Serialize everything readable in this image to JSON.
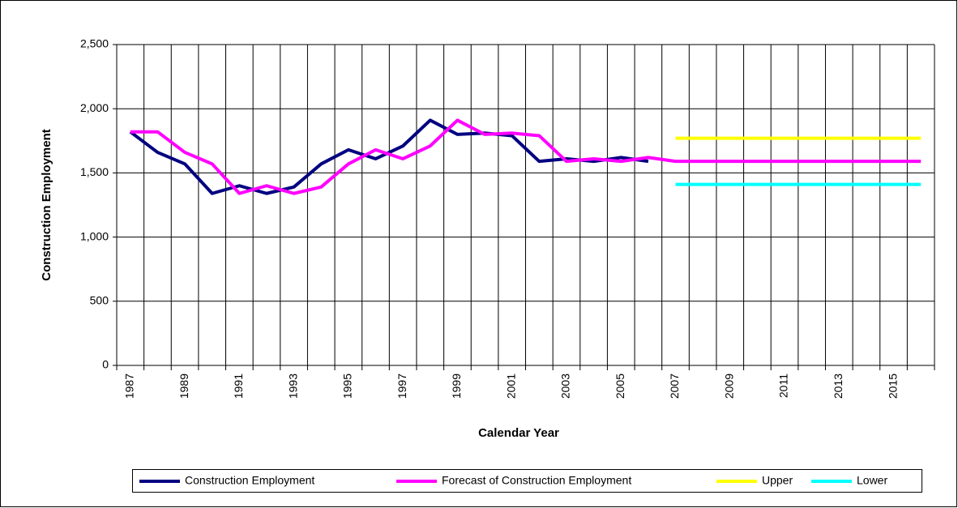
{
  "chart_data": {
    "type": "line",
    "x_label": "Calendar Year",
    "y_label": "Construction Employment",
    "categories": [
      "1987",
      null,
      "1989",
      null,
      "1991",
      null,
      "1993",
      null,
      "1995",
      null,
      "1997",
      null,
      "1999",
      null,
      "2001",
      null,
      "2003",
      null,
      "2005",
      null,
      "2007",
      null,
      "2009",
      null,
      "2011",
      null,
      "2013",
      null,
      "2015",
      null
    ],
    "series": [
      {
        "name": "Construction Employment",
        "color": "#000080",
        "values": [
          1820,
          1660,
          1570,
          1340,
          1400,
          1340,
          1390,
          1570,
          1680,
          1610,
          1710,
          1910,
          1800,
          1810,
          1790,
          1590,
          1610,
          1590,
          1620,
          1590,
          null,
          null,
          null,
          null,
          null,
          null,
          null,
          null,
          null,
          null
        ]
      },
      {
        "name": "Forecast of Construction Employment",
        "color": "#ff00ff",
        "values": [
          1820,
          1820,
          1660,
          1570,
          1340,
          1400,
          1340,
          1390,
          1570,
          1680,
          1610,
          1710,
          1910,
          1800,
          1810,
          1790,
          1590,
          1610,
          1590,
          1620,
          1590,
          1590,
          1590,
          1590,
          1590,
          1590,
          1590,
          1590,
          1590,
          1590
        ]
      },
      {
        "name": "Upper",
        "color": "#ffff00",
        "values": [
          null,
          null,
          null,
          null,
          null,
          null,
          null,
          null,
          null,
          null,
          null,
          null,
          null,
          null,
          null,
          null,
          null,
          null,
          null,
          null,
          1770,
          1770,
          1770,
          1770,
          1770,
          1770,
          1770,
          1770,
          1770,
          1770
        ]
      },
      {
        "name": "Lower",
        "color": "#00ffff",
        "values": [
          null,
          null,
          null,
          null,
          null,
          null,
          null,
          null,
          null,
          null,
          null,
          null,
          null,
          null,
          null,
          null,
          null,
          null,
          null,
          null,
          1410,
          1410,
          1410,
          1410,
          1410,
          1410,
          1410,
          1410,
          1410,
          1410
        ]
      }
    ],
    "ylim": [
      0,
      2500
    ],
    "yticks": [
      0,
      {
        "value": 500,
        "label": "500"
      },
      {
        "value": 1000,
        "label": "1,000"
      },
      {
        "value": 1500,
        "label": "1,500"
      },
      {
        "value": 2000,
        "label": "2,000"
      },
      {
        "value": 2500,
        "label": "2,500"
      }
    ],
    "grid": true,
    "legend": "bottom"
  }
}
